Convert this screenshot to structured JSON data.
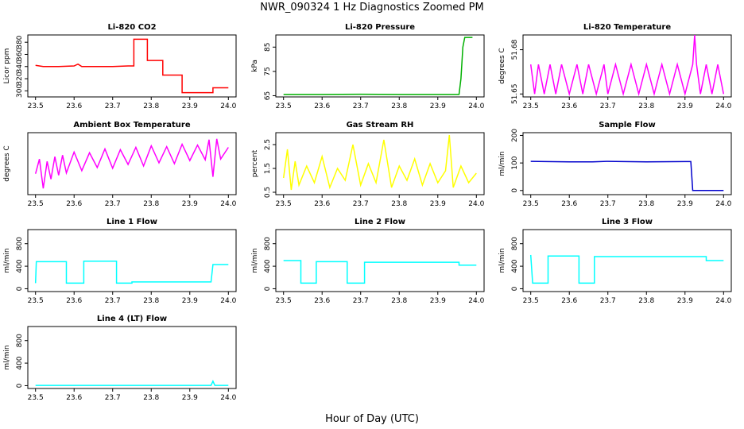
{
  "title": "NWR_090324  1 Hz Diagnostics Zoomed PM",
  "xlabel": "Hour of Day (UTC)",
  "chart_data": [
    {
      "type": "line",
      "title": "Li-820 CO2",
      "ylabel": "Licor ppm",
      "color": "#ff0000",
      "x": [
        23.5,
        23.52,
        23.56,
        23.6,
        23.61,
        23.62,
        23.65,
        23.7,
        23.74,
        23.755,
        23.755,
        23.79,
        23.79,
        23.83,
        23.83,
        23.88,
        23.88,
        23.96,
        23.96,
        24.0
      ],
      "values": [
        342,
        340,
        340,
        341,
        344,
        340,
        340,
        340,
        341,
        341,
        385,
        385,
        350,
        350,
        326,
        326,
        297,
        297,
        305,
        305
      ],
      "xlim": [
        23.48,
        24.02
      ],
      "ylim": [
        290,
        392
      ],
      "xticks": [
        23.5,
        23.6,
        23.7,
        23.8,
        23.9,
        {
          "value": 24,
          "label": "24.0"
        }
      ],
      "yticks": [
        300,
        320,
        340,
        360,
        380
      ]
    },
    {
      "type": "line",
      "title": "Li-820 Pressure",
      "ylabel": "kPa",
      "color": "#00b000",
      "x": [
        23.5,
        23.6,
        23.7,
        23.8,
        23.9,
        23.955,
        23.96,
        23.965,
        23.97,
        23.99
      ],
      "values": [
        65.5,
        65.5,
        65.6,
        65.5,
        65.5,
        65.5,
        72,
        85,
        89,
        89
      ],
      "xlim": [
        23.48,
        24.02
      ],
      "ylim": [
        64.5,
        90
      ],
      "xticks": [
        23.5,
        23.6,
        23.7,
        23.8,
        23.9,
        {
          "value": 24,
          "label": "24.0"
        }
      ],
      "yticks": [
        65,
        75,
        85
      ]
    },
    {
      "type": "line",
      "title": "Li-820 Temperature",
      "ylabel": "degrees C",
      "color": "#ff00ff",
      "x": [
        23.5,
        23.51,
        23.52,
        23.535,
        23.55,
        23.565,
        23.58,
        23.6,
        23.62,
        23.635,
        23.65,
        23.67,
        23.69,
        23.7,
        23.72,
        23.74,
        23.76,
        23.78,
        23.8,
        23.82,
        23.84,
        23.86,
        23.88,
        23.9,
        23.92,
        23.925,
        23.93,
        23.94,
        23.955,
        23.97,
        23.985,
        24.0
      ],
      "values": [
        51.67,
        51.65,
        51.67,
        51.65,
        51.67,
        51.65,
        51.67,
        51.65,
        51.67,
        51.65,
        51.67,
        51.65,
        51.67,
        51.65,
        51.67,
        51.65,
        51.67,
        51.65,
        51.67,
        51.65,
        51.67,
        51.65,
        51.67,
        51.65,
        51.67,
        51.69,
        51.67,
        51.65,
        51.67,
        51.65,
        51.67,
        51.65
      ],
      "xlim": [
        23.48,
        24.02
      ],
      "ylim": [
        51.648,
        51.69
      ],
      "xticks": [
        23.5,
        23.6,
        23.7,
        23.8,
        23.9,
        {
          "value": 24,
          "label": "24.0"
        }
      ],
      "yticks": [
        51.65,
        51.68
      ]
    },
    {
      "type": "line",
      "title": "Ambient Box Temperature",
      "ylabel": "degrees C",
      "color": "#ff00ff",
      "x": [
        23.5,
        23.51,
        23.52,
        23.53,
        23.54,
        23.55,
        23.56,
        23.57,
        23.58,
        23.6,
        23.62,
        23.64,
        23.66,
        23.68,
        23.7,
        23.72,
        23.74,
        23.76,
        23.78,
        23.8,
        23.82,
        23.84,
        23.86,
        23.88,
        23.9,
        23.92,
        23.94,
        23.95,
        23.96,
        23.97,
        23.98,
        24.0
      ],
      "values": [
        4.2,
        6.1,
        2.3,
        5.8,
        3.5,
        6.4,
        4.0,
        6.6,
        4.3,
        7.0,
        4.6,
        6.9,
        5.0,
        7.4,
        4.9,
        7.3,
        5.4,
        7.6,
        5.2,
        7.8,
        5.6,
        7.7,
        5.5,
        8.0,
        5.9,
        7.9,
        6.0,
        8.6,
        3.8,
        8.7,
        6.1,
        7.6
      ],
      "xlim": [
        23.48,
        24.02
      ],
      "ylim": [
        1.5,
        9.5
      ],
      "xticks": [
        23.5,
        23.6,
        23.7,
        23.8,
        23.9,
        {
          "value": 24,
          "label": "24.0"
        }
      ]
    },
    {
      "type": "line",
      "title": "Gas Stream RH",
      "ylabel": "percent",
      "color": "#ffff00",
      "x": [
        23.5,
        23.51,
        23.52,
        23.53,
        23.54,
        23.56,
        23.58,
        23.6,
        23.62,
        23.64,
        23.66,
        23.68,
        23.7,
        23.72,
        23.74,
        23.76,
        23.78,
        23.8,
        23.82,
        23.84,
        23.86,
        23.88,
        23.9,
        23.92,
        23.93,
        23.94,
        23.96,
        23.98,
        24.0
      ],
      "values": [
        1.1,
        2.3,
        0.6,
        1.8,
        0.8,
        1.6,
        0.9,
        2.0,
        0.7,
        1.5,
        1.0,
        2.5,
        0.8,
        1.7,
        0.9,
        2.7,
        0.7,
        1.6,
        1.0,
        1.9,
        0.8,
        1.7,
        0.9,
        1.4,
        2.9,
        0.7,
        1.6,
        0.9,
        1.3
      ],
      "xlim": [
        23.48,
        24.02
      ],
      "ylim": [
        0.4,
        3.0
      ],
      "xticks": [
        23.5,
        23.6,
        23.7,
        23.8,
        23.9,
        {
          "value": 24,
          "label": "24.0"
        }
      ],
      "yticks": [
        0.5,
        1.5,
        2.5
      ]
    },
    {
      "type": "line",
      "title": "Sample Flow",
      "ylabel": "ml/min",
      "color": "#0000cc",
      "x": [
        23.5,
        23.6,
        23.66,
        23.7,
        23.8,
        23.9,
        23.915,
        23.92,
        24.0
      ],
      "values": [
        106,
        104,
        104,
        106,
        104,
        105,
        105,
        0,
        0
      ],
      "xlim": [
        23.48,
        24.02
      ],
      "ylim": [
        -15,
        210
      ],
      "xticks": [
        23.5,
        23.6,
        23.7,
        23.8,
        23.9,
        {
          "value": 24,
          "label": "24.0"
        }
      ],
      "yticks": [
        0,
        100,
        200
      ]
    },
    {
      "type": "line",
      "title": "Line 1 Flow",
      "ylabel": "ml/min",
      "color": "#00ffff",
      "x": [
        23.5,
        23.502,
        23.58,
        23.58,
        23.625,
        23.625,
        23.71,
        23.71,
        23.75,
        23.75,
        23.955,
        23.96,
        24.0
      ],
      "values": [
        100,
        480,
        480,
        100,
        100,
        490,
        490,
        100,
        100,
        120,
        120,
        430,
        430
      ],
      "xlim": [
        23.48,
        24.02
      ],
      "ylim": [
        -50,
        1050
      ],
      "xticks": [
        23.5,
        23.6,
        23.7,
        23.8,
        23.9,
        {
          "value": 24,
          "label": "24.0"
        }
      ],
      "yticks": [
        0,
        400,
        800
      ]
    },
    {
      "type": "line",
      "title": "Line 2 Flow",
      "ylabel": "ml/min",
      "color": "#00ffff",
      "x": [
        23.5,
        23.545,
        23.545,
        23.585,
        23.585,
        23.665,
        23.665,
        23.71,
        23.71,
        23.955,
        23.955,
        24.0
      ],
      "values": [
        500,
        500,
        100,
        100,
        480,
        480,
        100,
        100,
        470,
        470,
        420,
        420
      ],
      "xlim": [
        23.48,
        24.02
      ],
      "ylim": [
        -50,
        1050
      ],
      "xticks": [
        23.5,
        23.6,
        23.7,
        23.8,
        23.9,
        {
          "value": 24,
          "label": "24.0"
        }
      ],
      "yticks": [
        0,
        400,
        800
      ]
    },
    {
      "type": "line",
      "title": "Line 3 Flow",
      "ylabel": "ml/min",
      "color": "#00ffff",
      "x": [
        23.5,
        23.505,
        23.545,
        23.545,
        23.625,
        23.625,
        23.665,
        23.665,
        23.955,
        23.955,
        24.0
      ],
      "values": [
        600,
        100,
        100,
        580,
        580,
        100,
        100,
        570,
        570,
        500,
        500
      ],
      "xlim": [
        23.48,
        24.02
      ],
      "ylim": [
        -50,
        1050
      ],
      "xticks": [
        23.5,
        23.6,
        23.7,
        23.8,
        23.9,
        {
          "value": 24,
          "label": "24.0"
        }
      ],
      "yticks": [
        0,
        400,
        800
      ]
    },
    {
      "type": "line",
      "title": "Line 4 (LT) Flow",
      "ylabel": "ml/min",
      "color": "#00ffff",
      "x": [
        23.5,
        23.7,
        23.955,
        23.96,
        23.965,
        24.0
      ],
      "values": [
        5,
        5,
        5,
        80,
        5,
        5
      ],
      "xlim": [
        23.48,
        24.02
      ],
      "ylim": [
        -50,
        1050
      ],
      "xticks": [
        23.5,
        23.6,
        23.7,
        23.8,
        23.9,
        {
          "value": 24,
          "label": "24.0"
        }
      ],
      "yticks": [
        0,
        400,
        800
      ]
    }
  ]
}
